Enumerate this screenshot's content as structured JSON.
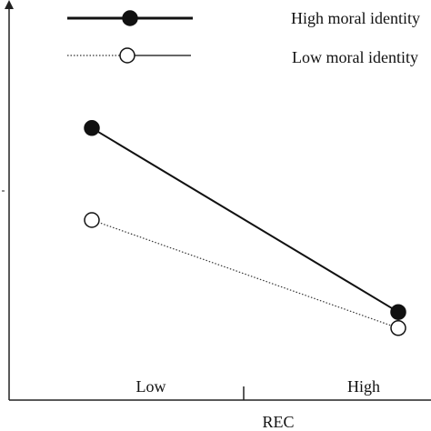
{
  "chart_data": {
    "type": "line",
    "title": "",
    "xlabel": "REC",
    "ylabel": "",
    "categories": [
      "Low",
      "High"
    ],
    "series": [
      {
        "name": "High moral identity",
        "values": [
          0.68,
          0.22
        ],
        "style": "solid-filled"
      },
      {
        "name": "Low moral identity",
        "values": [
          0.45,
          0.18
        ],
        "style": "dotted-hollow"
      }
    ],
    "ylim": [
      0,
      1
    ],
    "grid": false,
    "legend": "top-right"
  },
  "colors": {
    "high_series": "#111111",
    "low_series": "#333333",
    "axis": "#222222",
    "background": "#ffffff"
  }
}
